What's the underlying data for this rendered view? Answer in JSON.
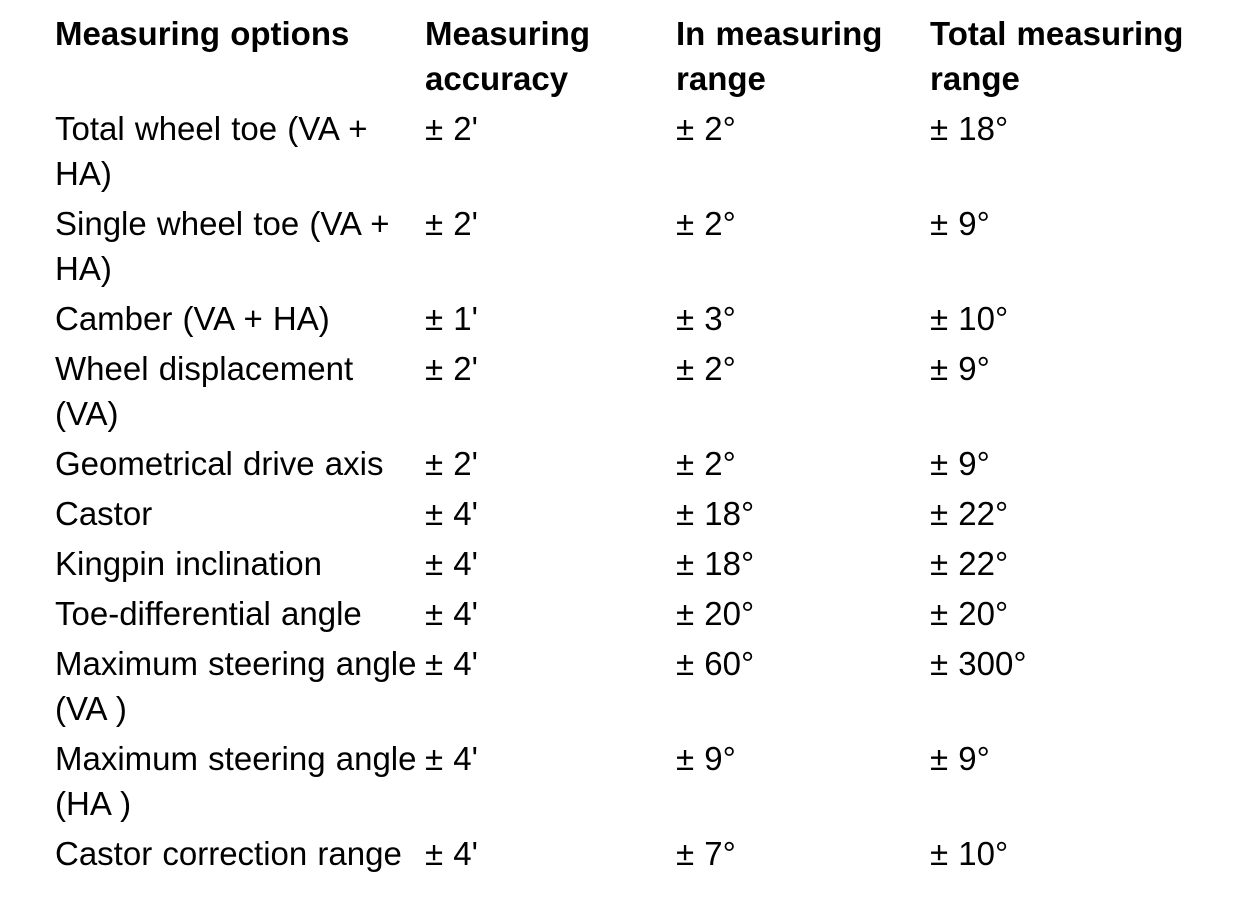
{
  "colors": {
    "background": "#ffffff",
    "text": "#000000"
  },
  "table": {
    "columns": [
      "Measuring options",
      "Measuring accuracy",
      "In measuring range",
      "Total measuring range"
    ],
    "rows": [
      {
        "option": "Total wheel toe (VA + HA)",
        "accuracy": "± 2'",
        "in_range": "± 2°",
        "total_range": "± 18°"
      },
      {
        "option": "Single wheel toe (VA + HA)",
        "accuracy": "± 2'",
        "in_range": "± 2°",
        "total_range": "± 9°"
      },
      {
        "option": "Camber (VA + HA)",
        "accuracy": "± 1'",
        "in_range": "± 3°",
        "total_range": "± 10°"
      },
      {
        "option": "Wheel displacement (VA)",
        "accuracy": "± 2'",
        "in_range": "± 2°",
        "total_range": "± 9°"
      },
      {
        "option": "Geometrical drive axis",
        "accuracy": "± 2'",
        "in_range": "± 2°",
        "total_range": "± 9°"
      },
      {
        "option": "Castor",
        "accuracy": "± 4'",
        "in_range": "± 18°",
        "total_range": "± 22°"
      },
      {
        "option": "Kingpin inclination",
        "accuracy": "± 4'",
        "in_range": "± 18°",
        "total_range": "± 22°"
      },
      {
        "option": "Toe-differential angle",
        "accuracy": "± 4'",
        "in_range": "± 20°",
        "total_range": "± 20°"
      },
      {
        "option": "Maximum steering angle (VA )",
        "accuracy": "± 4'",
        "in_range": "± 60°",
        "total_range": "± 300°"
      },
      {
        "option": "Maximum steering angle (HA )",
        "accuracy": "± 4'",
        "in_range": "± 9°",
        "total_range": "± 9°"
      },
      {
        "option": "Castor correction range",
        "accuracy": "± 4'",
        "in_range": "± 7°",
        "total_range": "± 10°"
      }
    ]
  }
}
